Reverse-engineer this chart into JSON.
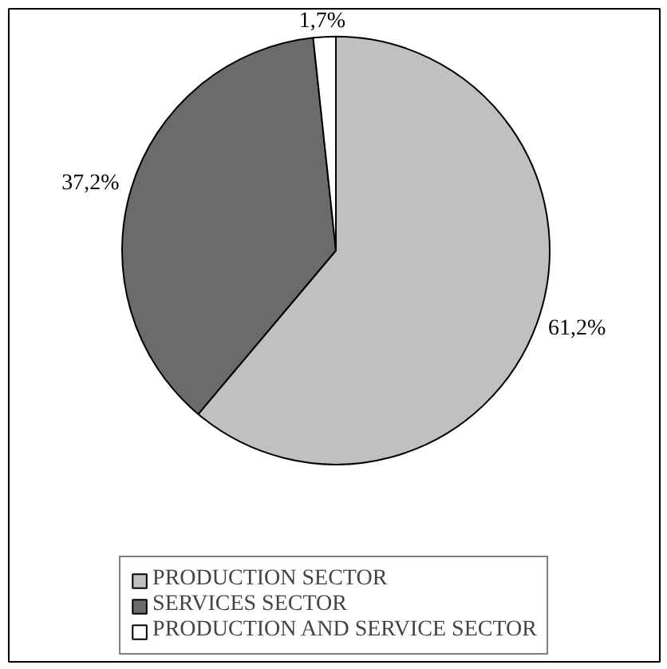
{
  "chart_data": {
    "type": "pie",
    "categories": [
      "PRODUCTION SECTOR",
      "SERVICES SECTOR",
      "PRODUCTION AND SERVICE SECTOR"
    ],
    "values": [
      61.2,
      37.2,
      1.7
    ],
    "colors": [
      "#c0c0c0",
      "#6b6b6b",
      "#ffffff"
    ],
    "value_labels": [
      "61,2%",
      "37,2%",
      "1,7%"
    ],
    "legend": "bottom"
  }
}
